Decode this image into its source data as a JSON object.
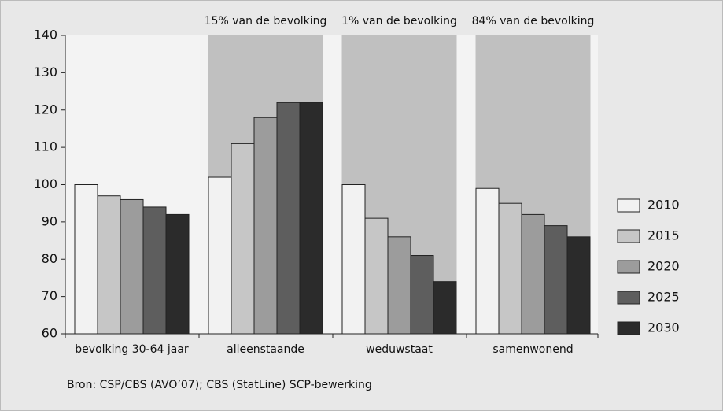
{
  "chart_data": {
    "type": "bar",
    "categories": [
      "bevolking 30-64 jaar",
      "alleenstaande",
      "weduwstaat",
      "samenwonend"
    ],
    "band_labels": [
      null,
      "15% van de bevolking",
      "1% van de bevolking",
      "84% van de bevolking"
    ],
    "series": [
      {
        "name": "2010",
        "color": "#f2f2f2",
        "values": [
          100,
          102,
          100,
          99
        ]
      },
      {
        "name": "2015",
        "color": "#c6c6c6",
        "values": [
          97,
          111,
          91,
          95
        ]
      },
      {
        "name": "2020",
        "color": "#9c9c9c",
        "values": [
          96,
          118,
          86,
          92
        ]
      },
      {
        "name": "2025",
        "color": "#5e5e5e",
        "values": [
          94,
          122,
          81,
          89
        ]
      },
      {
        "name": "2030",
        "color": "#2b2b2b",
        "values": [
          92,
          122,
          74,
          86
        ]
      }
    ],
    "ylim": [
      60,
      140
    ],
    "yticks": [
      60,
      70,
      80,
      90,
      100,
      110,
      120,
      130,
      140
    ],
    "legend": "right",
    "source": "Bron: CSP/CBS (AVO’07); CBS (StatLine) SCP-bewerking"
  }
}
